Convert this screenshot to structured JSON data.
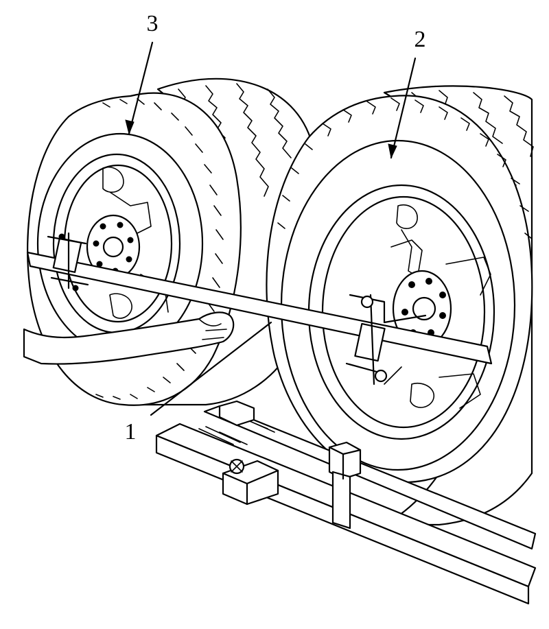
{
  "figure": {
    "callouts": [
      {
        "id": "1",
        "text": "1"
      },
      {
        "id": "2",
        "text": "2"
      },
      {
        "id": "3",
        "text": "3"
      }
    ]
  }
}
